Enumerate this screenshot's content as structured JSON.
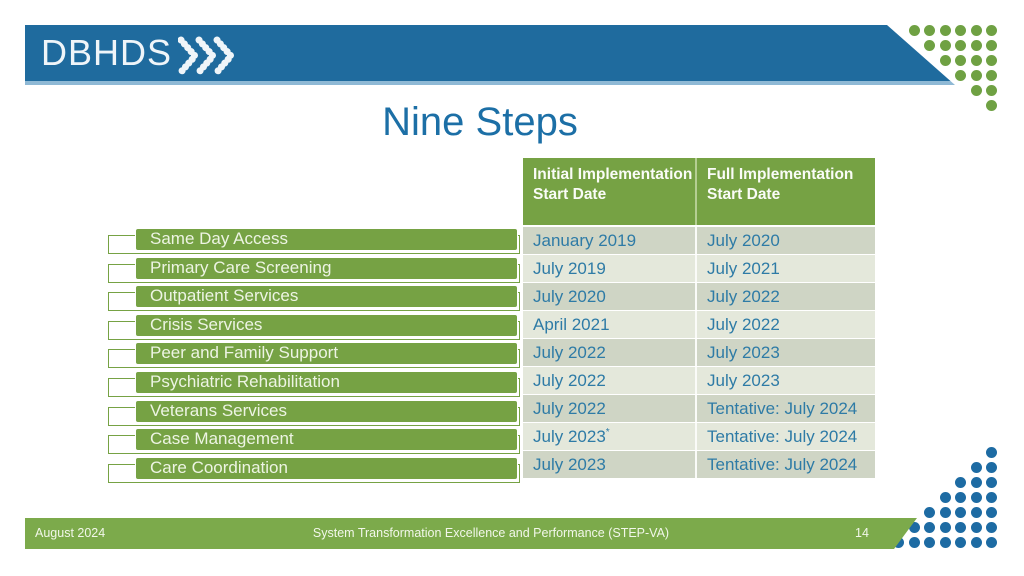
{
  "header": {
    "logo_text": "DBHDS",
    "logo_chevrons_icon": "triple-dotted-chevrons"
  },
  "title": "Nine Steps",
  "table": {
    "columns": [
      "Initial Implementation Start Date",
      "Full Implementation Start Date"
    ],
    "rows": [
      {
        "label": "Same Day Access",
        "initial": "January 2019",
        "initial_note": "",
        "full": "July 2020"
      },
      {
        "label": "Primary Care Screening",
        "initial": "July 2019",
        "initial_note": "",
        "full": "July 2021"
      },
      {
        "label": "Outpatient Services",
        "initial": "July 2020",
        "initial_note": "",
        "full": "July 2022"
      },
      {
        "label": "Crisis Services",
        "initial": "April 2021",
        "initial_note": "",
        "full": "July 2022"
      },
      {
        "label": "Peer and Family Support",
        "initial": "July 2022",
        "initial_note": "",
        "full": "July 2023"
      },
      {
        "label": "Psychiatric Rehabilitation",
        "initial": "July 2022",
        "initial_note": "",
        "full": "July 2023"
      },
      {
        "label": "Veterans Services",
        "initial": "July 2022",
        "initial_note": "",
        "full": "Tentative: July 2024"
      },
      {
        "label": "Case Management",
        "initial": "July 2023",
        "initial_note": "*",
        "full": "Tentative: July 2024"
      },
      {
        "label": "Care Coordination",
        "initial": "July 2023",
        "initial_note": "",
        "full": "Tentative: July 2024"
      }
    ]
  },
  "footer": {
    "date": "August 2024",
    "center": "System Transformation Excellence and Performance (STEP-VA)",
    "page_number": "14"
  },
  "colors": {
    "banner_blue": "#1F6B9E",
    "banner_underline_blue": "#8FB9D5",
    "title_blue": "#1C6FA6",
    "date_text_blue": "#2E7BA6",
    "green": "#76A244",
    "footer_green": "#7CAA4B",
    "row_odd": "#CFD5C5",
    "row_even": "#E4E8DB",
    "green_dot": "#6FA143",
    "blue_dot": "#1D6BA3"
  },
  "decor": {
    "top_right_dot_rows": [
      6,
      5,
      4,
      3,
      2,
      1
    ],
    "bottom_right_dot_rows": [
      1,
      2,
      3,
      4,
      5,
      6,
      7
    ]
  }
}
